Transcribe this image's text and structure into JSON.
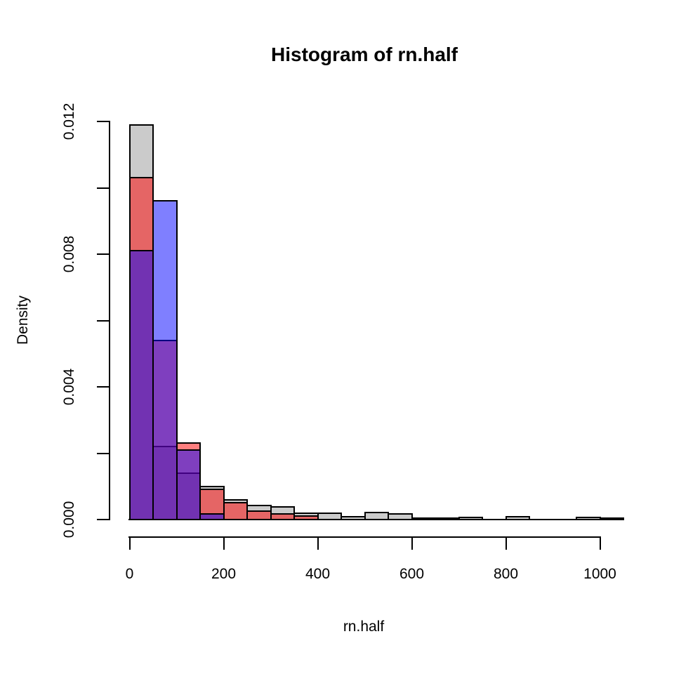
{
  "title": "Histogram of rn.half",
  "x_axis": {
    "label": "rn.half",
    "ticks": [
      {
        "value": 0,
        "label": "0"
      },
      {
        "value": 200,
        "label": "200"
      },
      {
        "value": 400,
        "label": "400"
      },
      {
        "value": 600,
        "label": "600"
      },
      {
        "value": 800,
        "label": "800"
      },
      {
        "value": 1000,
        "label": "1000"
      }
    ]
  },
  "y_axis": {
    "label": "Density",
    "ticks": [
      {
        "value": 0.0,
        "label": "0.000"
      },
      {
        "value": 0.002,
        "label": ""
      },
      {
        "value": 0.004,
        "label": "0.004"
      },
      {
        "value": 0.006,
        "label": ""
      },
      {
        "value": 0.008,
        "label": "0.008"
      },
      {
        "value": 0.01,
        "label": ""
      },
      {
        "value": 0.012,
        "label": "0.012"
      }
    ]
  },
  "chart_data": {
    "type": "bar",
    "subtype": "overlaid-histograms",
    "title": "Histogram of rn.half",
    "xlabel": "rn.half",
    "ylabel": "Density",
    "bin_width": 50,
    "xlim": [
      0,
      1050
    ],
    "ylim": [
      0,
      0.012
    ],
    "grid": "off",
    "legend": "none",
    "bar_border_color": "#000000",
    "series": [
      {
        "name": "gray-histogram",
        "color": "#CBCBCB",
        "bins_start": 0,
        "densities": [
          0.0119,
          0.0022,
          0.0014,
          0.001,
          0.0006,
          0.00042,
          0.00038,
          0.0002,
          0.00019,
          8e-05,
          0.00021,
          0.00016,
          4e-05,
          4e-05,
          6e-05,
          0,
          9e-05,
          0,
          0,
          6e-05,
          4e-05
        ]
      },
      {
        "name": "red-histogram",
        "color": "rgba(255,0,0,0.5)",
        "bins_start": 0,
        "densities": [
          0.0103,
          0.0054,
          0.0023,
          0.0009,
          0.0005,
          0.00026,
          0.00017,
          0.0001
        ]
      },
      {
        "name": "blue-histogram",
        "color": "rgba(0,0,255,0.5)",
        "bins_start": 0,
        "densities": [
          0.0081,
          0.0096,
          0.0021,
          0.00016
        ]
      }
    ]
  }
}
